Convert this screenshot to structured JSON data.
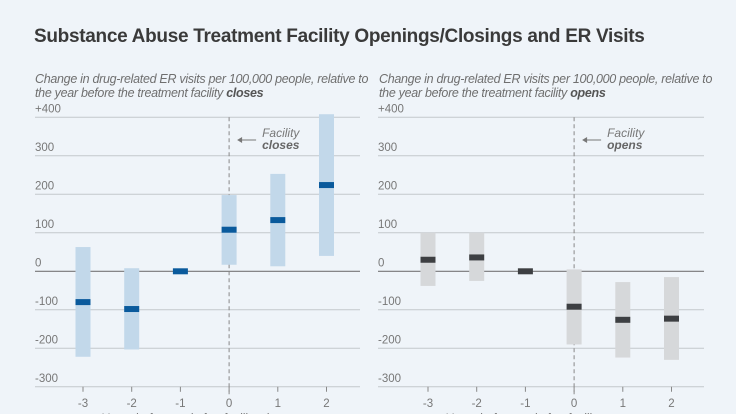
{
  "title": "Substance Abuse Treatment Facility Openings/Closings and ER Visits",
  "chart_data": [
    {
      "type": "bar",
      "subtitle_prefix": "Change in drug-related ER visits per 100,000 people, relative to the year before the treatment facility",
      "subtitle_emph": "closes",
      "xlabel": "Years before and after facility closes",
      "x": [
        -3,
        -2,
        -1,
        0,
        1,
        2
      ],
      "x_tick_labels": [
        "-3",
        "-2",
        "-1",
        "0",
        "1",
        "2"
      ],
      "y_tick_labels": [
        "+400",
        "300",
        "200",
        "100",
        "0",
        "-100",
        "-200",
        "-300"
      ],
      "y_ticks": [
        400,
        300,
        200,
        100,
        0,
        -100,
        -200,
        -300
      ],
      "ylim": [
        -300,
        400
      ],
      "estimates": [
        -80,
        -98,
        0,
        108,
        133,
        224
      ],
      "ci_low": [
        -222,
        -203,
        0,
        17,
        13,
        40
      ],
      "ci_high": [
        63,
        8,
        0,
        198,
        253,
        408
      ],
      "annotation": {
        "line1": "Facility",
        "line2": "closes",
        "x": 0
      },
      "colors": {
        "estimate": "#0a5a9c",
        "ci": "#c2d8ea"
      },
      "grid": true
    },
    {
      "type": "bar",
      "subtitle_prefix": "Change in drug-related ER visits per 100,000 people, relative to the year before the treatment facility",
      "subtitle_emph": "opens",
      "xlabel": "Years before and after facility opens",
      "x": [
        -3,
        -2,
        -1,
        0,
        1,
        2
      ],
      "x_tick_labels": [
        "-3",
        "-2",
        "-1",
        "0",
        "1",
        "2"
      ],
      "y_tick_labels": [
        "+400",
        "300",
        "200",
        "100",
        "0",
        "-100",
        "-200",
        "-300"
      ],
      "y_ticks": [
        400,
        300,
        200,
        100,
        0,
        -100,
        -200,
        -300
      ],
      "ylim": [
        -300,
        400
      ],
      "estimates": [
        30,
        36,
        0,
        -92,
        -126,
        -123
      ],
      "ci_low": [
        -38,
        -25,
        0,
        -190,
        -224,
        -230
      ],
      "ci_high": [
        100,
        100,
        0,
        5,
        -28,
        -15
      ],
      "annotation": {
        "line1": "Facility",
        "line2": "opens",
        "x": 0
      },
      "colors": {
        "estimate": "#3d3f42",
        "ci": "#d6d8da"
      },
      "grid": true
    }
  ]
}
